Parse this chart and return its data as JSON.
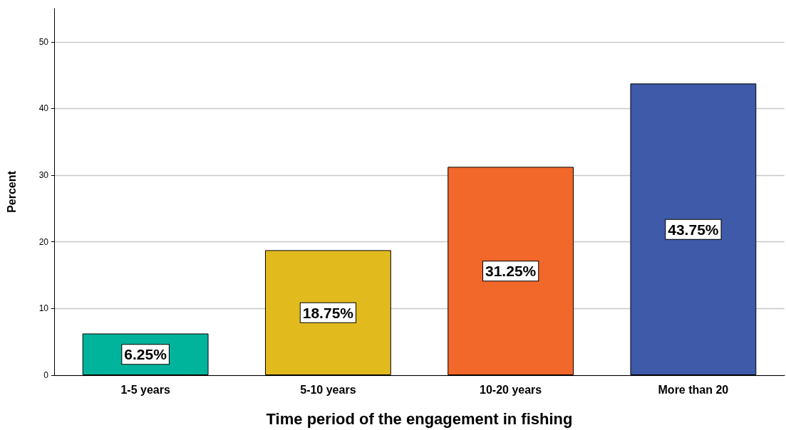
{
  "chart_data": {
    "type": "bar",
    "xlabel": "Time period of the engagement in fishing",
    "ylabel": "Percent",
    "categories": [
      "1-5 years",
      "5-10 years",
      "10-20 years",
      "More than 20"
    ],
    "values": [
      6.25,
      18.75,
      31.25,
      43.75
    ],
    "colors": [
      "#00b39b",
      "#e1bb1e",
      "#f2672a",
      "#3e5aa8"
    ],
    "value_labels": [
      "6.25%",
      "18.75%",
      "31.25%",
      "43.75%"
    ],
    "ylim": [
      0,
      55
    ],
    "yticks": [
      0,
      10,
      20,
      30,
      40,
      50
    ],
    "grid": "y"
  }
}
